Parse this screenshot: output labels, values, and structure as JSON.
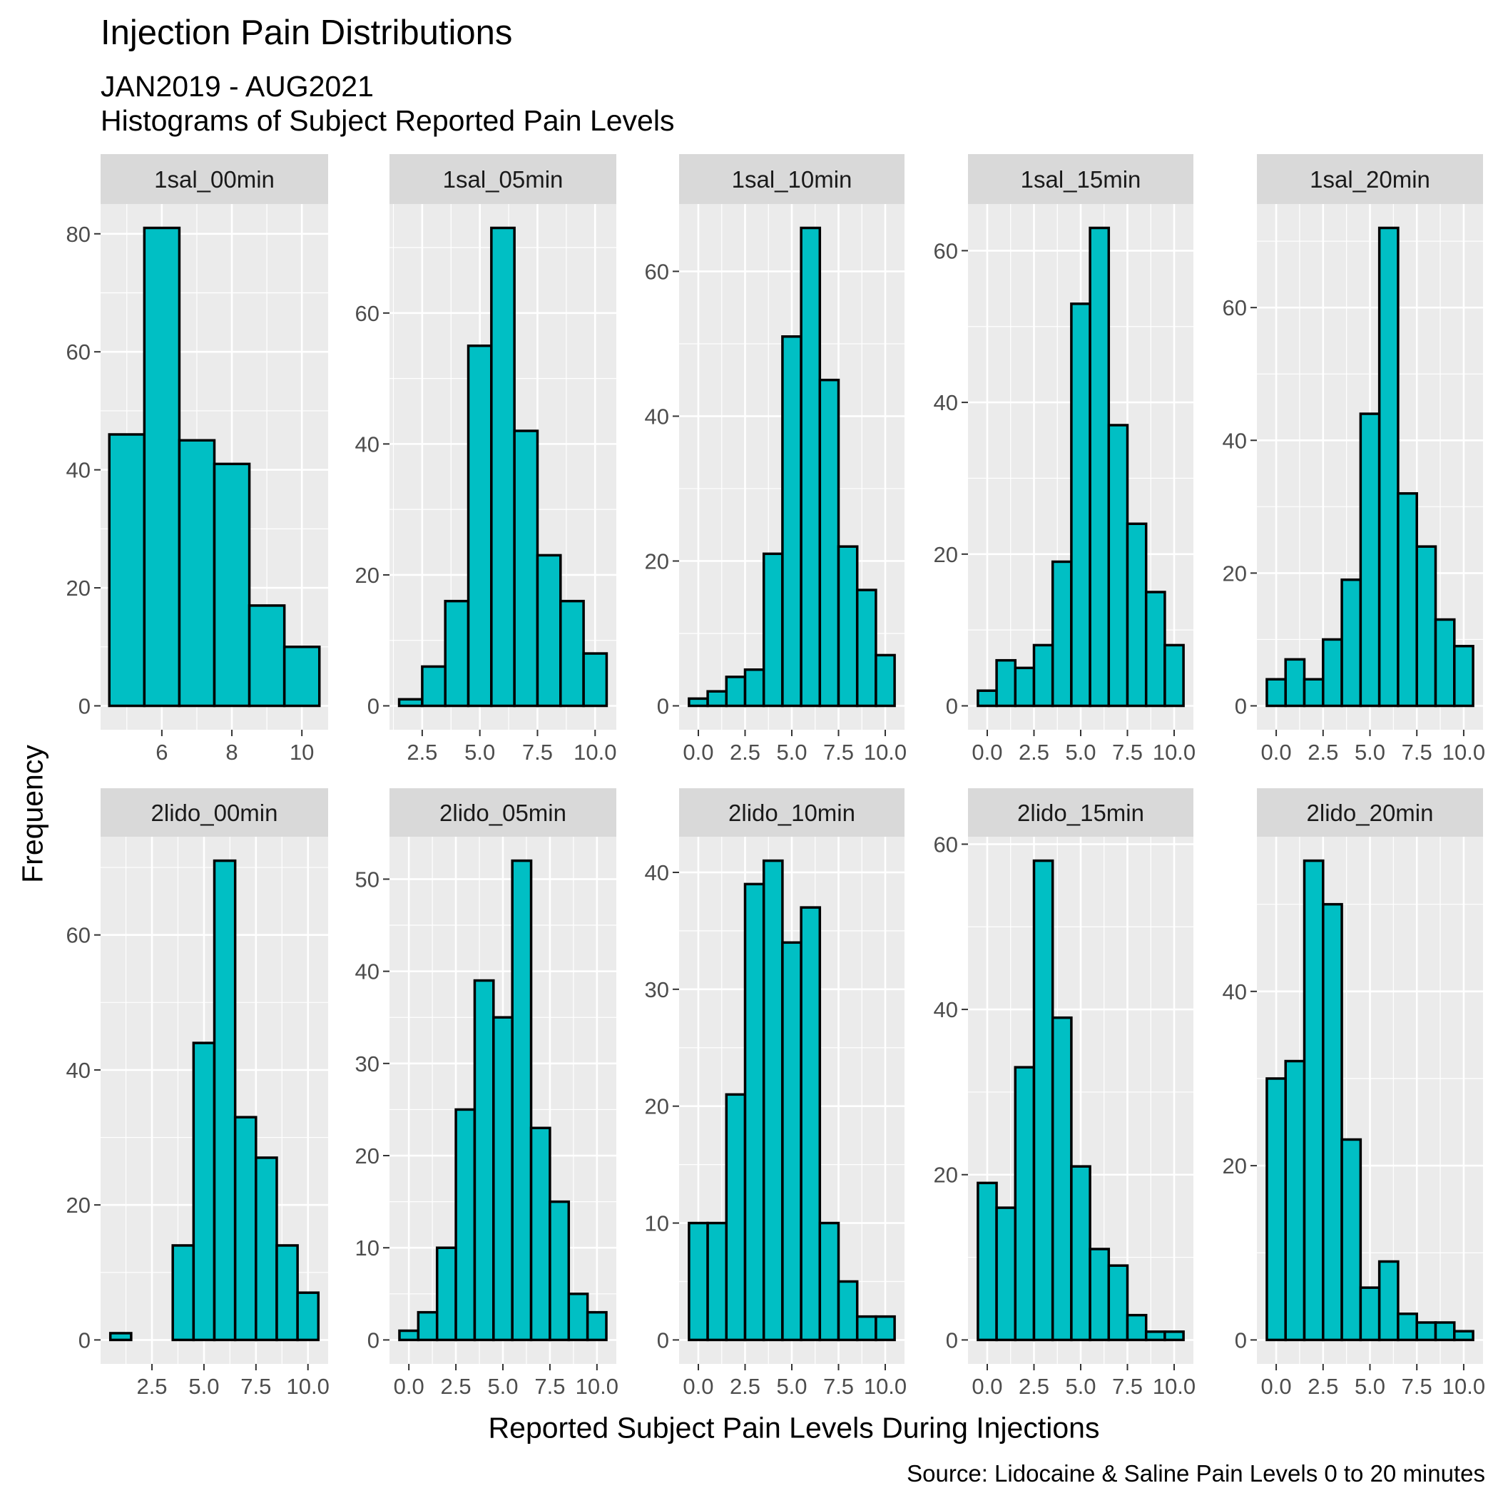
{
  "colors": {
    "panel_bg": "#ebebeb",
    "strip_bg": "#d9d9d9",
    "grid": "#ffffff",
    "bar_fill": "#00bfc4",
    "bar_stroke": "#000000",
    "axis_text": "#4d4d4d"
  },
  "chart_data": {
    "type": "bar",
    "title": "Injection Pain Distributions",
    "subtitle": "JAN2019 - AUG2021",
    "subtitle2": "Histograms of Subject Reported Pain Levels",
    "xlabel": "Reported Subject Pain Levels During Injections",
    "ylabel": "Frequency",
    "caption": "Source: Lidocaine & Saline Pain Levels 0 to 20 minutes",
    "facet_layout": "2 rows x 5 columns, free scales",
    "grid": true,
    "panels": [
      {
        "name": "1sal_00min",
        "x": [
          5,
          6,
          7,
          8,
          9,
          10
        ],
        "values": [
          46,
          81,
          45,
          41,
          17,
          10
        ],
        "xlim": [
          4.25,
          10.75
        ],
        "ylim": [
          -4.05,
          85.05
        ],
        "xticks": [
          6,
          8,
          10
        ],
        "xtick_labels": [
          "6",
          "8",
          "10"
        ],
        "yticks": [
          0,
          20,
          40,
          60,
          80
        ],
        "ytick_labels": [
          "0",
          "20",
          "40",
          "60",
          "80"
        ]
      },
      {
        "name": "1sal_05min",
        "x": [
          2,
          3,
          4,
          5,
          6,
          7,
          8,
          9,
          10
        ],
        "values": [
          1,
          6,
          16,
          55,
          73,
          42,
          23,
          16,
          8
        ],
        "xlim": [
          1.08,
          10.92
        ],
        "ylim": [
          -3.65,
          76.65
        ],
        "xticks": [
          2.5,
          5,
          7.5,
          10
        ],
        "xtick_labels": [
          "2.5",
          "5.0",
          "7.5",
          "10.0"
        ],
        "yticks": [
          0,
          20,
          40,
          60
        ],
        "ytick_labels": [
          "0",
          "20",
          "40",
          "60"
        ]
      },
      {
        "name": "1sal_10min",
        "x": [
          0,
          1,
          2,
          3,
          4,
          5,
          6,
          7,
          8,
          9,
          10
        ],
        "values": [
          1,
          2,
          4,
          5,
          21,
          51,
          66,
          45,
          22,
          16,
          7
        ],
        "xlim": [
          -1.03,
          11.03
        ],
        "ylim": [
          -3.3,
          69.3
        ],
        "xticks": [
          0,
          2.5,
          5,
          7.5,
          10
        ],
        "xtick_labels": [
          "0.0",
          "2.5",
          "5.0",
          "7.5",
          "10.0"
        ],
        "yticks": [
          0,
          20,
          40,
          60
        ],
        "ytick_labels": [
          "0",
          "20",
          "40",
          "60"
        ]
      },
      {
        "name": "1sal_15min",
        "x": [
          0,
          1,
          2,
          3,
          4,
          5,
          6,
          7,
          8,
          9,
          10
        ],
        "values": [
          2,
          6,
          5,
          8,
          19,
          53,
          63,
          37,
          24,
          15,
          8
        ],
        "xlim": [
          -1.03,
          11.03
        ],
        "ylim": [
          -3.15,
          66.15
        ],
        "xticks": [
          0,
          2.5,
          5,
          7.5,
          10
        ],
        "xtick_labels": [
          "0.0",
          "2.5",
          "5.0",
          "7.5",
          "10.0"
        ],
        "yticks": [
          0,
          20,
          40,
          60
        ],
        "ytick_labels": [
          "0",
          "20",
          "40",
          "60"
        ]
      },
      {
        "name": "1sal_20min",
        "x": [
          0,
          1,
          2,
          3,
          4,
          5,
          6,
          7,
          8,
          9,
          10
        ],
        "values": [
          4,
          7,
          4,
          10,
          19,
          44,
          72,
          32,
          24,
          13,
          9
        ],
        "xlim": [
          -1.03,
          11.03
        ],
        "ylim": [
          -3.6,
          75.6
        ],
        "xticks": [
          0,
          2.5,
          5,
          7.5,
          10
        ],
        "xtick_labels": [
          "0.0",
          "2.5",
          "5.0",
          "7.5",
          "10.0"
        ],
        "yticks": [
          0,
          20,
          40,
          60
        ],
        "ytick_labels": [
          "0",
          "20",
          "40",
          "60"
        ]
      },
      {
        "name": "2lido_00min",
        "x": [
          1,
          2,
          3,
          4,
          5,
          6,
          7,
          8,
          9,
          10
        ],
        "values": [
          1,
          0,
          0,
          14,
          44,
          71,
          33,
          27,
          14,
          7
        ],
        "xlim": [
          0.03,
          10.97
        ],
        "ylim": [
          -3.55,
          74.55
        ],
        "xticks": [
          2.5,
          5,
          7.5,
          10
        ],
        "xtick_labels": [
          "2.5",
          "5.0",
          "7.5",
          "10.0"
        ],
        "yticks": [
          0,
          20,
          40,
          60
        ],
        "ytick_labels": [
          "0",
          "20",
          "40",
          "60"
        ]
      },
      {
        "name": "2lido_05min",
        "x": [
          0,
          1,
          2,
          3,
          4,
          5,
          6,
          7,
          8,
          9,
          10
        ],
        "values": [
          1,
          3,
          10,
          25,
          39,
          35,
          52,
          23,
          15,
          5,
          3
        ],
        "xlim": [
          -1.03,
          11.03
        ],
        "ylim": [
          -2.6,
          54.6
        ],
        "xticks": [
          0,
          2.5,
          5,
          7.5,
          10
        ],
        "xtick_labels": [
          "0.0",
          "2.5",
          "5.0",
          "7.5",
          "10.0"
        ],
        "yticks": [
          0,
          10,
          20,
          30,
          40,
          50
        ],
        "ytick_labels": [
          "0",
          "10",
          "20",
          "30",
          "40",
          "50"
        ]
      },
      {
        "name": "2lido_10min",
        "x": [
          0,
          1,
          2,
          3,
          4,
          5,
          6,
          7,
          8,
          9,
          10
        ],
        "values": [
          10,
          10,
          21,
          39,
          41,
          34,
          37,
          10,
          5,
          2,
          2
        ],
        "xlim": [
          -1.03,
          11.03
        ],
        "ylim": [
          -2.05,
          43.05
        ],
        "xticks": [
          0,
          2.5,
          5,
          7.5,
          10
        ],
        "xtick_labels": [
          "0.0",
          "2.5",
          "5.0",
          "7.5",
          "10.0"
        ],
        "yticks": [
          0,
          10,
          20,
          30,
          40
        ],
        "ytick_labels": [
          "0",
          "10",
          "20",
          "30",
          "40"
        ]
      },
      {
        "name": "2lido_15min",
        "x": [
          0,
          1,
          2,
          3,
          4,
          5,
          6,
          7,
          8,
          9,
          10
        ],
        "values": [
          19,
          16,
          33,
          58,
          39,
          21,
          11,
          9,
          3,
          1,
          1
        ],
        "xlim": [
          -1.03,
          11.03
        ],
        "ylim": [
          -2.9,
          60.9
        ],
        "xticks": [
          0,
          2.5,
          5,
          7.5,
          10
        ],
        "xtick_labels": [
          "0.0",
          "2.5",
          "5.0",
          "7.5",
          "10.0"
        ],
        "yticks": [
          0,
          20,
          40,
          60
        ],
        "ytick_labels": [
          "0",
          "20",
          "40",
          "60"
        ]
      },
      {
        "name": "2lido_20min",
        "x": [
          0,
          1,
          2,
          3,
          4,
          5,
          6,
          7,
          8,
          9,
          10
        ],
        "values": [
          30,
          32,
          55,
          50,
          23,
          6,
          9,
          3,
          2,
          2,
          1
        ],
        "xlim": [
          -1.03,
          11.03
        ],
        "ylim": [
          -2.75,
          57.75
        ],
        "xticks": [
          0,
          2.5,
          5,
          7.5,
          10
        ],
        "xtick_labels": [
          "0.0",
          "2.5",
          "5.0",
          "7.5",
          "10.0"
        ],
        "yticks": [
          0,
          20,
          40
        ],
        "ytick_labels": [
          "0",
          "20",
          "40"
        ]
      }
    ]
  }
}
